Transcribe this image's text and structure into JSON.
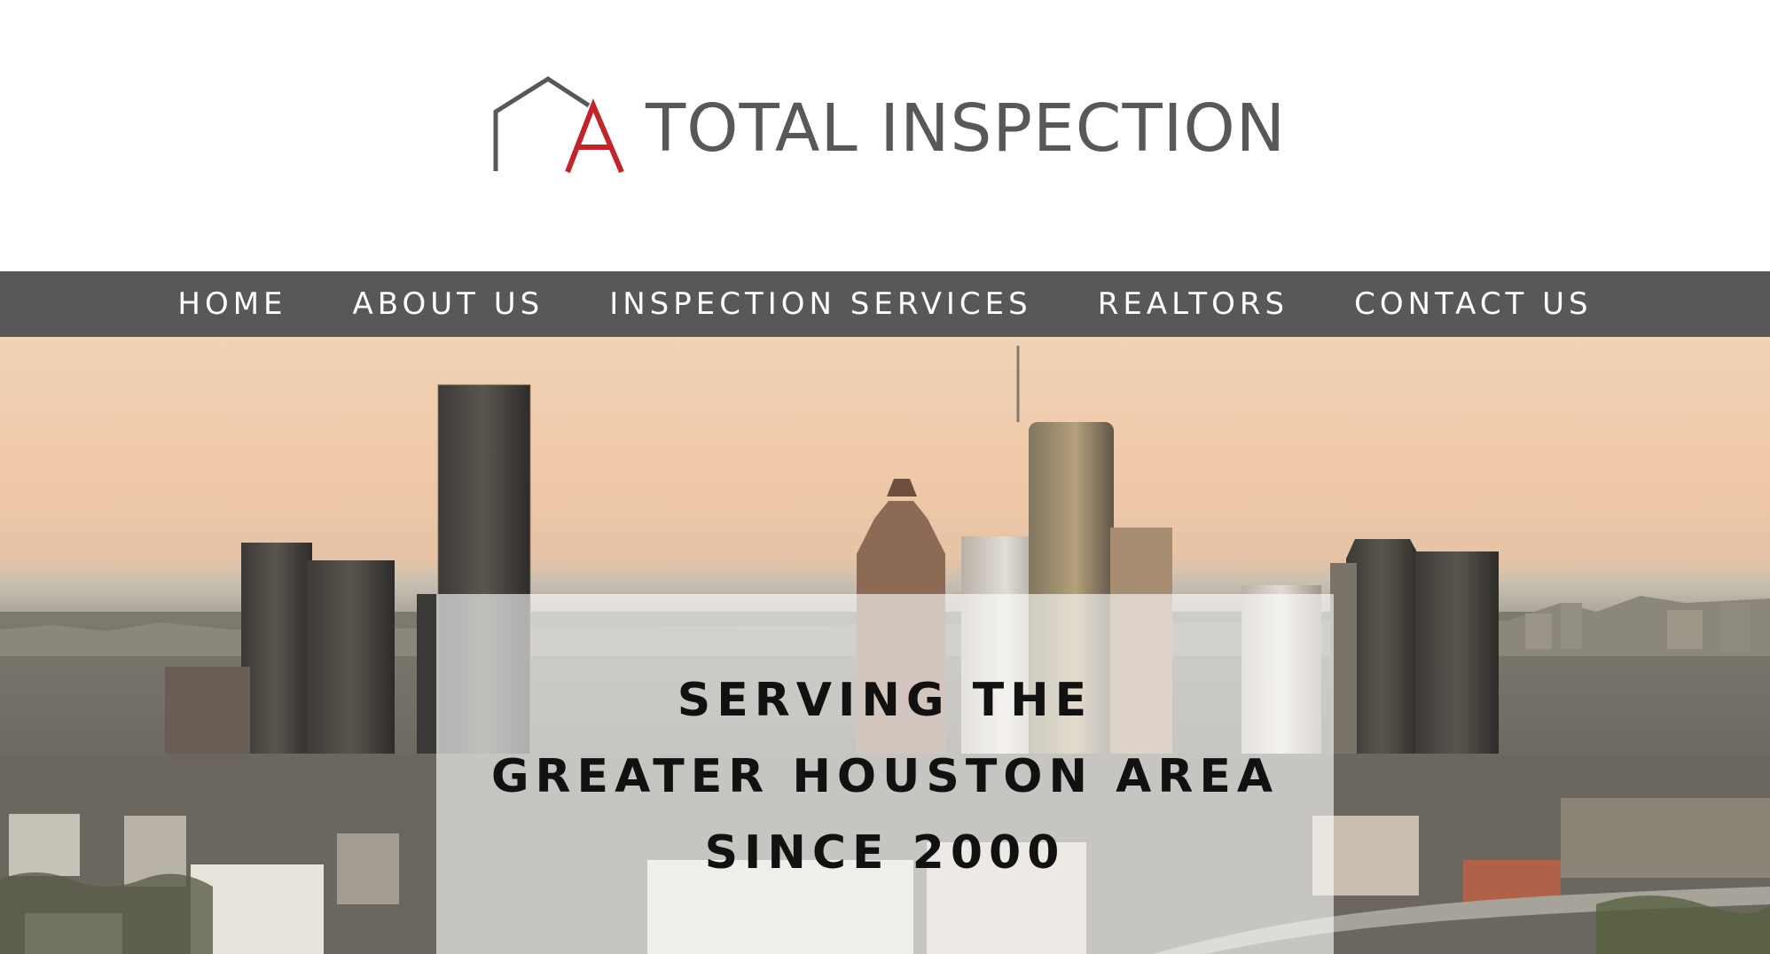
{
  "brand": {
    "name": "TOTAL INSPECTION",
    "logo_icon": "house-outline-with-letter-a-icon",
    "logo_letter": "A",
    "colors": {
      "text_gray": "#58585a",
      "accent_red": "#c2242b",
      "nav_bg": "#58585a",
      "nav_text": "#ffffff"
    }
  },
  "nav": {
    "items": [
      {
        "label": "HOME"
      },
      {
        "label": "ABOUT US"
      },
      {
        "label": "INSPECTION SERVICES"
      },
      {
        "label": "REALTORS"
      },
      {
        "label": "CONTACT US"
      }
    ]
  },
  "hero": {
    "image": "houston-skyline-photo",
    "lines": [
      "SERVING THE",
      "GREATER HOUSTON AREA",
      "SINCE 2000"
    ]
  }
}
